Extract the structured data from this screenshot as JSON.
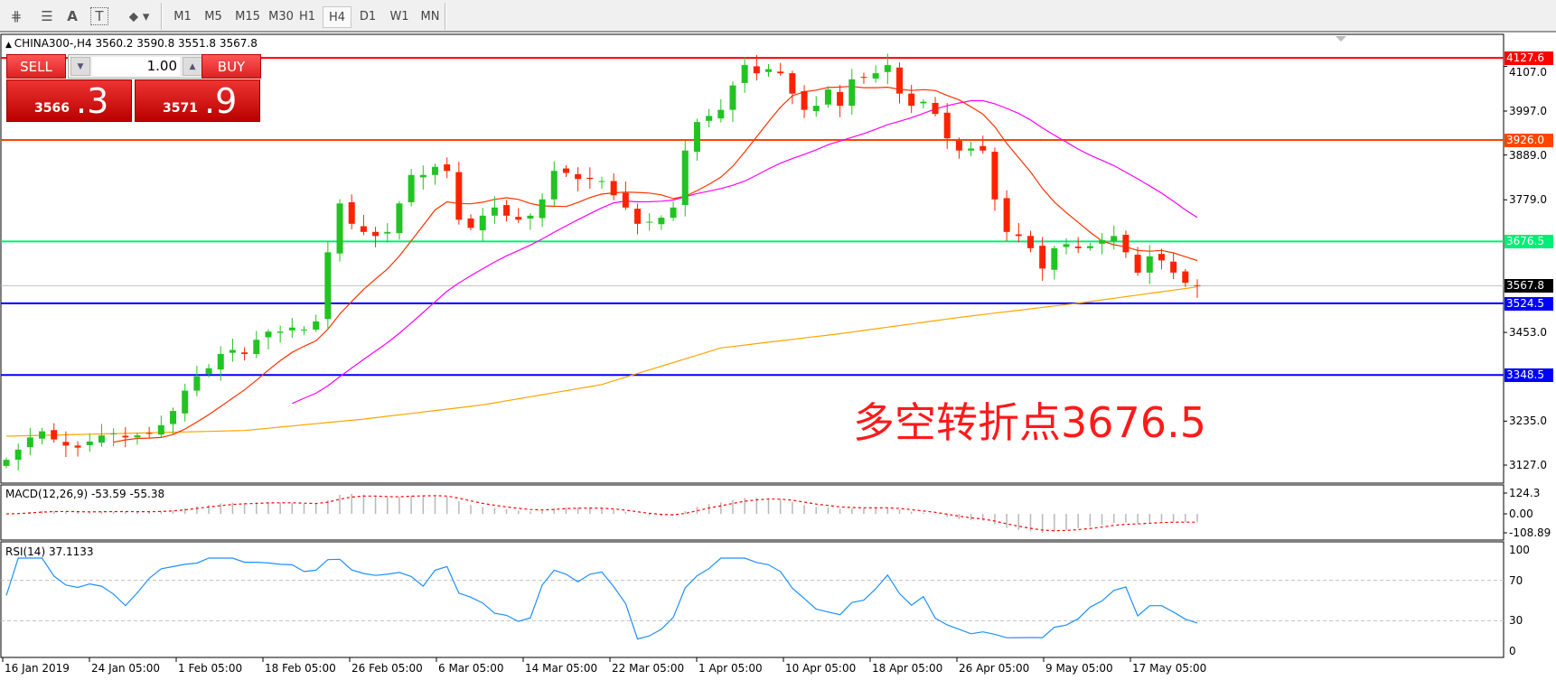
{
  "toolbar": {
    "icons": [
      "fibonacci-expansion-icon",
      "fibonacci-fan-icon",
      "text-icon",
      "text-label-icon",
      "arrows-dropdown-icon"
    ],
    "text_icon": "A",
    "label_icon": "T",
    "timeframes": [
      "M1",
      "M5",
      "M15",
      "M30",
      "H1",
      "H4",
      "D1",
      "W1",
      "MN"
    ],
    "selected_timeframe": "H4"
  },
  "chart": {
    "title": "CHINA300-,H4  3560.2 3590.8 3551.8 3567.8",
    "symbol": "CHINA300-",
    "timeframe": "H4",
    "ohlc": {
      "open": 3560.2,
      "high": 3590.8,
      "low": 3551.8,
      "close": 3567.8
    },
    "annotation": "多空转折点3676.5",
    "annotation_color": "#ff1a1a"
  },
  "trade": {
    "sell_label": "SELL",
    "buy_label": "BUY",
    "lot": "1.00",
    "sell_main": "3566",
    "sell_frac": ".3",
    "buy_main": "3571",
    "buy_frac": ".9"
  },
  "price_axis": {
    "ticks": [
      "4107.0",
      "3997.0",
      "3889.0",
      "3779.0",
      "3453.0",
      "3235.0",
      "3127.0"
    ]
  },
  "hlines": [
    {
      "price": 4127.6,
      "label": "4127.6",
      "color": "#ff0000"
    },
    {
      "price": 3926.0,
      "label": "3926.0",
      "color": "#ff4500"
    },
    {
      "price": 3676.5,
      "label": "3676.5",
      "color": "#00ee76"
    },
    {
      "price": 3567.8,
      "label": "3567.8",
      "color": "#c0c0c0",
      "label_bg": "#000000"
    },
    {
      "price": 3524.5,
      "label": "3524.5",
      "color": "#0000ff"
    },
    {
      "price": 3348.5,
      "label": "3348.5",
      "color": "#0000ff"
    }
  ],
  "colors": {
    "bull": "#22c322",
    "bear": "#ff2200",
    "ma_fast": "#ff3300",
    "ma_mid": "#ff00ff",
    "ma_long": "#ffa500",
    "rsi": "#1e90ff",
    "macd_signal": "#ff0000",
    "macd_hist": "#b8b8b8"
  },
  "chart_data": {
    "type": "candlestick",
    "closes": [
      3140,
      3165,
      3195,
      3210,
      3190,
      3175,
      3170,
      3185,
      3200,
      3205,
      3195,
      3200,
      3205,
      3225,
      3260,
      3310,
      3345,
      3365,
      3400,
      3410,
      3400,
      3435,
      3455,
      3455,
      3465,
      3460,
      3480,
      3650,
      3770,
      3720,
      3700,
      3690,
      3700,
      3770,
      3840,
      3840,
      3860,
      3850,
      3730,
      3710,
      3740,
      3760,
      3740,
      3730,
      3740,
      3780,
      3850,
      3845,
      3830,
      3830,
      3825,
      3790,
      3760,
      3720,
      3725,
      3735,
      3760,
      3900,
      3970,
      3985,
      4000,
      4060,
      4110,
      4090,
      4100,
      4090,
      4040,
      4000,
      4010,
      4050,
      4010,
      4075,
      4080,
      4090,
      4110,
      4040,
      4010,
      4020,
      3990,
      3930,
      3900,
      3905,
      3900,
      3780,
      3700,
      3690,
      3660,
      3610,
      3660,
      3670,
      3660,
      3665,
      3680,
      3690,
      3650,
      3600,
      3640,
      3630,
      3600,
      3575,
      3567.8
    ],
    "ma_long": [
      3198,
      3205,
      3212,
      3240,
      3275,
      3325,
      3415,
      3450,
      3490,
      3525,
      3565
    ],
    "dates": [
      "16 Jan 2019",
      "24 Jan 05:00",
      "1 Feb 05:00",
      "18 Feb 05:00",
      "26 Feb 05:00",
      "6 Mar 05:00",
      "14 Mar 05:00",
      "22 Mar 05:00",
      "1 Apr 05:00",
      "10 Apr 05:00",
      "18 Apr 05:00",
      "26 Apr 05:00",
      "9 May 05:00",
      "17 May 05:00"
    ]
  },
  "macd": {
    "label": "MACD(12,26,9) -53.59 -55.38",
    "ticks": [
      "124.3",
      "0.00",
      "-108.89"
    ],
    "max": 124.3,
    "min": -108.89
  },
  "rsi": {
    "label": "RSI(14) 37.1133",
    "ticks": [
      "100",
      "70",
      "30",
      "0"
    ],
    "levels": [
      70,
      30
    ]
  }
}
